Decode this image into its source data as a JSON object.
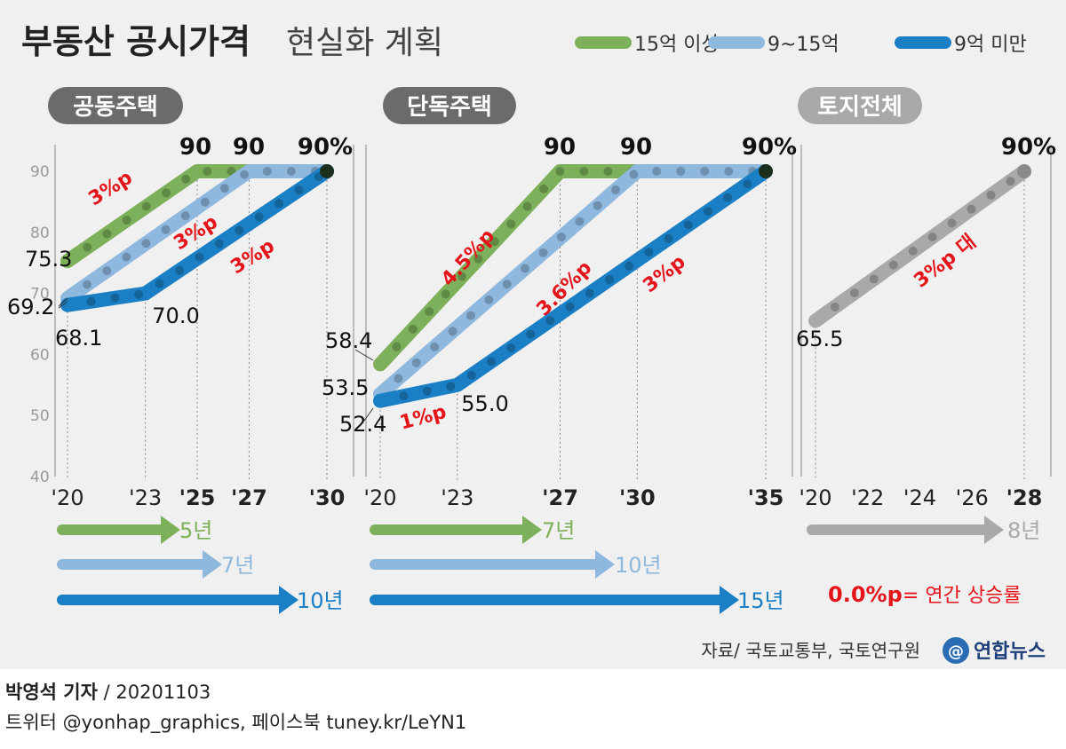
{
  "title_bold": "부동산 공시가격",
  "title_light": "현실화 계획",
  "legend": [
    {
      "label": "15억 이상",
      "color": "#7db05a"
    },
    {
      "label": "9~15억",
      "color": "#8fb8df"
    },
    {
      "label": "9억 미만",
      "color": "#1a7fc4"
    }
  ],
  "colors": {
    "green": "#7db05a",
    "lightblue": "#8fb8df",
    "blue": "#1a7fc4",
    "gray": "#a9a9a9",
    "red": "#e3141a",
    "badge_dark": "#6b6b6b",
    "badge_light": "#a8a8a8"
  },
  "y_ticks": [
    "90",
    "80",
    "70",
    "60",
    "50",
    "40"
  ],
  "chart_data": [
    {
      "type": "line",
      "title": "공동주택",
      "x_ticks": [
        "'20",
        "'23",
        "'25",
        "'27",
        "'30"
      ],
      "ylim": [
        40,
        90
      ],
      "series": [
        {
          "name": "15억 이상",
          "x": [
            2020,
            2025,
            2030
          ],
          "y": [
            75.3,
            90,
            90
          ],
          "start_label": "75.3",
          "end_label": "90"
        },
        {
          "name": "9~15억",
          "x": [
            2020,
            2027,
            2030
          ],
          "y": [
            69.2,
            90,
            90
          ],
          "start_label": "69.2",
          "end_label": "90"
        },
        {
          "name": "9억 미만",
          "x": [
            2020,
            2023,
            2030
          ],
          "y": [
            68.1,
            70.0,
            90
          ],
          "start_label": "68.1",
          "mid_label": "70.0",
          "end_label": "90%"
        }
      ],
      "rate_labels": [
        "3%p",
        "3%p",
        "3%p"
      ],
      "durations": [
        "5년",
        "7년",
        "10년"
      ]
    },
    {
      "type": "line",
      "title": "단독주택",
      "x_ticks": [
        "'20",
        "'23",
        "'27",
        "'30",
        "'35"
      ],
      "ylim": [
        40,
        90
      ],
      "series": [
        {
          "name": "15억 이상",
          "x": [
            2020,
            2027,
            2035
          ],
          "y": [
            58.4,
            90,
            90
          ],
          "start_label": "58.4",
          "end_label": "90"
        },
        {
          "name": "9~15억",
          "x": [
            2020,
            2030,
            2035
          ],
          "y": [
            53.5,
            90,
            90
          ],
          "start_label": "53.5",
          "end_label": "90"
        },
        {
          "name": "9억 미만",
          "x": [
            2020,
            2023,
            2035
          ],
          "y": [
            52.4,
            55.0,
            90
          ],
          "start_label": "52.4",
          "mid_label": "55.0",
          "end_label": "90%"
        }
      ],
      "rate_labels": [
        "4.5%p",
        "3.6%p",
        "3%p",
        "1%p"
      ],
      "durations": [
        "7년",
        "10년",
        "15년"
      ]
    },
    {
      "type": "line",
      "title": "토지전체",
      "x_ticks": [
        "'20",
        "'22",
        "'24",
        "'26",
        "'28"
      ],
      "ylim": [
        40,
        90
      ],
      "series": [
        {
          "name": "토지전체",
          "x": [
            2020,
            2028
          ],
          "y": [
            65.5,
            90
          ],
          "start_label": "65.5",
          "end_label": "90%"
        }
      ],
      "rate_labels": [
        "3%p 대"
      ],
      "durations": [
        "8년"
      ]
    }
  ],
  "rate_legend": {
    "value": "0.0%p",
    "text": "= 연간 상승률"
  },
  "source": "자료/ 국토교통부, 국토연구원",
  "logo_text": "연합뉴스",
  "byline": {
    "author": "박영석 기자",
    "sep": "/",
    "date": "20201103"
  },
  "social": "트위터 @yonhap_graphics, 페이스북 tuney.kr/LeYN1"
}
